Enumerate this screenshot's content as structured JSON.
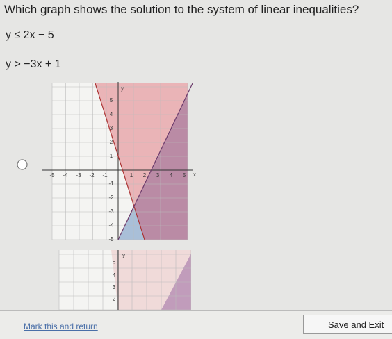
{
  "question": "Which graph shows the solution to the system of linear inequalities?",
  "inequalities": [
    "y ≤ 2x − 5",
    "y > −3x + 1"
  ],
  "graphs": [
    {
      "x_axis": "x",
      "y_axis": "y",
      "x_labels": [
        "-5",
        "-4",
        "-3",
        "-2",
        "-1",
        "1",
        "2",
        "3",
        "4",
        "5"
      ],
      "y_labels": [
        "5",
        "4",
        "3",
        "2",
        "1",
        "-1",
        "-2",
        "-3",
        "-4",
        "-5"
      ]
    },
    {
      "y_axis": "y",
      "y_labels": [
        "5",
        "4",
        "3",
        "2"
      ]
    }
  ],
  "footer": {
    "mark": "Mark this and return",
    "save": "Save and Exit"
  }
}
